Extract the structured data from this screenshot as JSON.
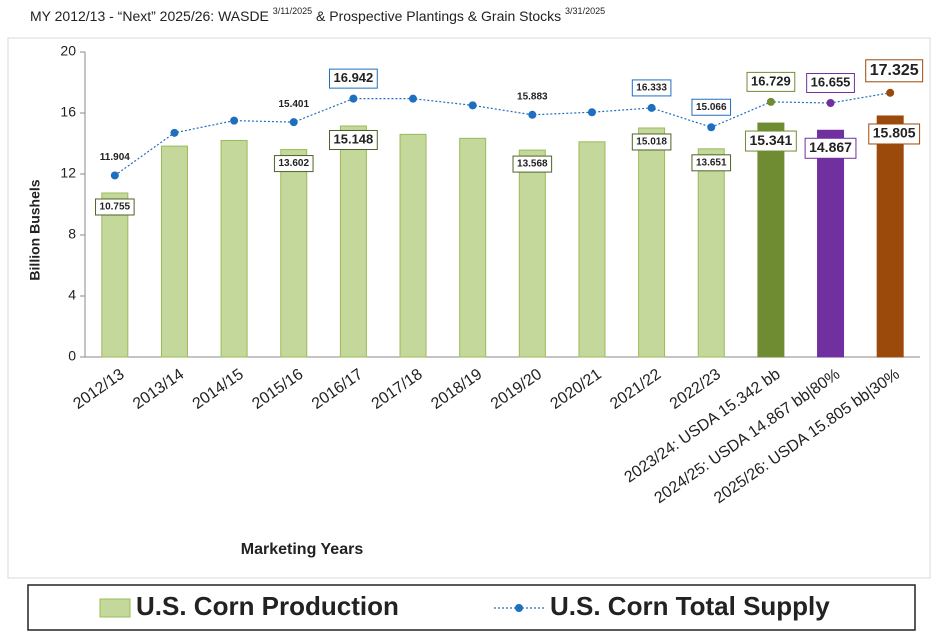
{
  "chart_data": {
    "type": "bar_line",
    "title_parts": [
      "MY 2012/13 - “Next” 2025/26: WASDE ",
      "3/11/2025",
      " & Prospective Plantings & Grain Stocks ",
      "3/31/2025"
    ],
    "x_label": "Marketing Years",
    "y_label": "Billion Bushels",
    "categories": [
      "2012/13",
      "2013/14",
      "2014/15",
      "2015/16",
      "2016/17",
      "2017/18",
      "2018/19",
      "2019/20",
      "2020/21",
      "2021/22",
      "2022/23",
      "2023/24: USDA 15.342 bb",
      "2024/25: USDA 14.867 bb|80%",
      "2025/26: USDA 15.805 bb|30%"
    ],
    "ylim": [
      0,
      20
    ],
    "yticks": [
      0,
      4,
      8,
      12,
      16,
      20
    ],
    "grid": false,
    "series": [
      {
        "name": "U.S. Corn Production",
        "kind": "bar",
        "color": "#c4d89b",
        "colors": [
          "#c4d89b",
          "#c4d89b",
          "#c4d89b",
          "#c4d89b",
          "#c4d89b",
          "#c4d89b",
          "#c4d89b",
          "#c4d89b",
          "#c4d89b",
          "#c4d89b",
          "#c4d89b",
          "#6f8c32",
          "#7030a0",
          "#9c4a0c"
        ],
        "values": [
          10.755,
          13.83,
          14.2,
          13.602,
          15.148,
          14.6,
          14.34,
          13.568,
          14.11,
          15.018,
          13.651,
          15.341,
          14.867,
          15.805
        ],
        "value_labels": [
          "10.755",
          null,
          null,
          "13.602",
          "15.148",
          null,
          null,
          "13.568",
          null,
          "15.018",
          "13.651",
          "15.341",
          "14.867",
          "15.805"
        ]
      },
      {
        "name": "U.S. Corn Total Supply",
        "kind": "line",
        "color": "#1f6fc0",
        "colors": [
          "#1f6fc0",
          "#1f6fc0",
          "#1f6fc0",
          "#1f6fc0",
          "#1f6fc0",
          "#1f6fc0",
          "#1f6fc0",
          "#1f6fc0",
          "#1f6fc0",
          "#1f6fc0",
          "#1f6fc0",
          "#6f8c32",
          "#7030a0",
          "#9c4a0c"
        ],
        "values": [
          11.904,
          14.7,
          15.5,
          15.401,
          16.942,
          16.94,
          16.5,
          15.883,
          16.05,
          16.333,
          15.066,
          16.729,
          16.655,
          17.325
        ],
        "value_labels": [
          "11.904",
          null,
          null,
          "15.401",
          "16.942",
          null,
          null,
          "15.883",
          null,
          "16.333",
          "15.066",
          "16.729",
          "16.655",
          "17.325"
        ]
      }
    ]
  }
}
